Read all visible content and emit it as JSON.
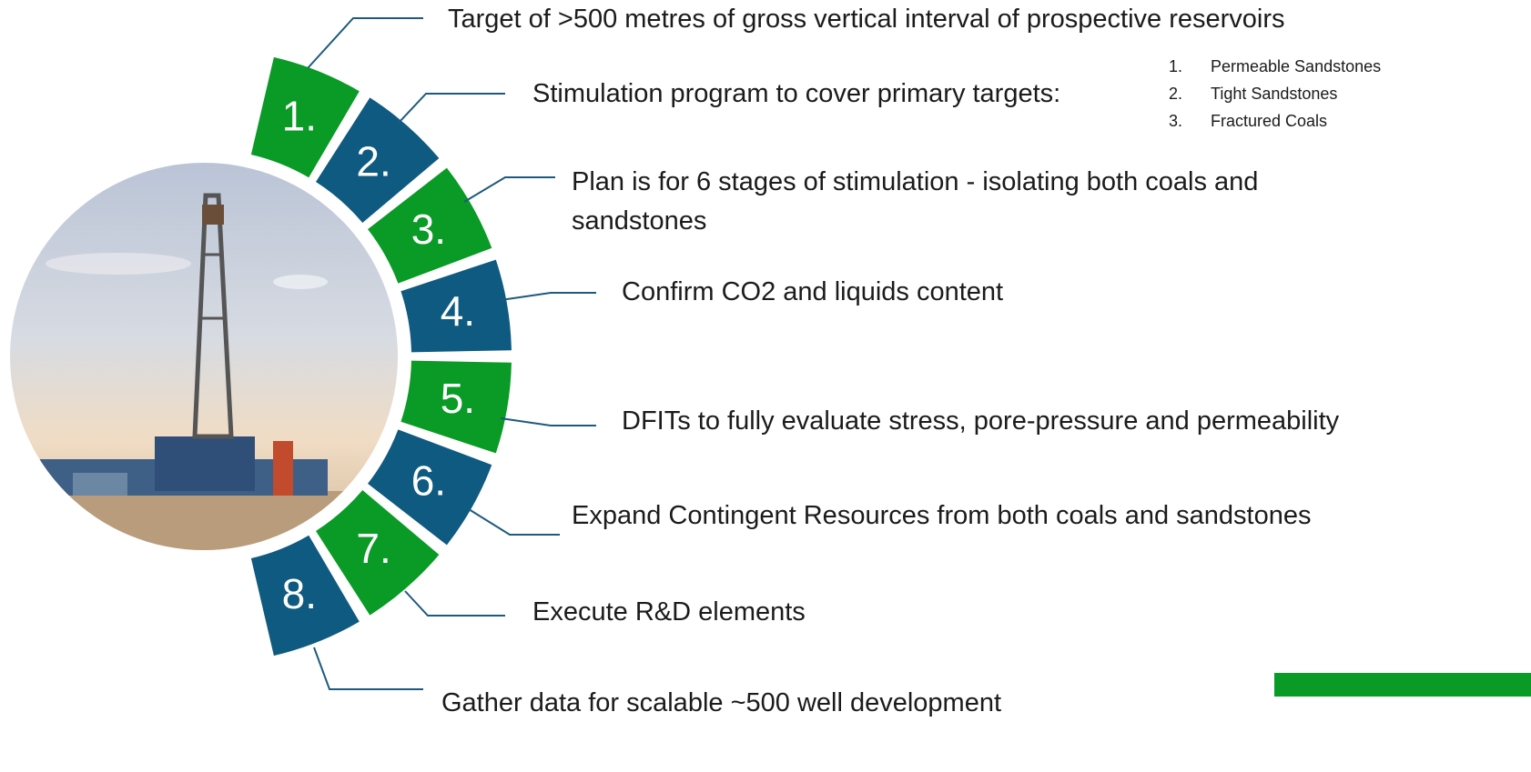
{
  "items": [
    {
      "number": "1.",
      "text": "Target of >500 metres of gross vertical interval of prospective reservoirs"
    },
    {
      "number": "2.",
      "text": "Stimulation program to cover primary targets:",
      "sublist": [
        {
          "number": "1.",
          "text": "Permeable Sandstones"
        },
        {
          "number": "2.",
          "text": "Tight Sandstones"
        },
        {
          "number": "3.",
          "text": "Fractured Coals"
        }
      ]
    },
    {
      "number": "3.",
      "text": "Plan is for 6 stages of stimulation - isolating both coals and sandstones"
    },
    {
      "number": "4.",
      "text": "Confirm CO2 and liquids content"
    },
    {
      "number": "5.",
      "text": "DFITs to fully evaluate stress, pore-pressure and permeability"
    },
    {
      "number": "6.",
      "text": "Expand Contingent Resources from both coals and sandstones"
    },
    {
      "number": "7.",
      "text": "Execute R&D elements"
    },
    {
      "number": "8.",
      "text": "Gather data for scalable ~500 well development"
    }
  ]
}
